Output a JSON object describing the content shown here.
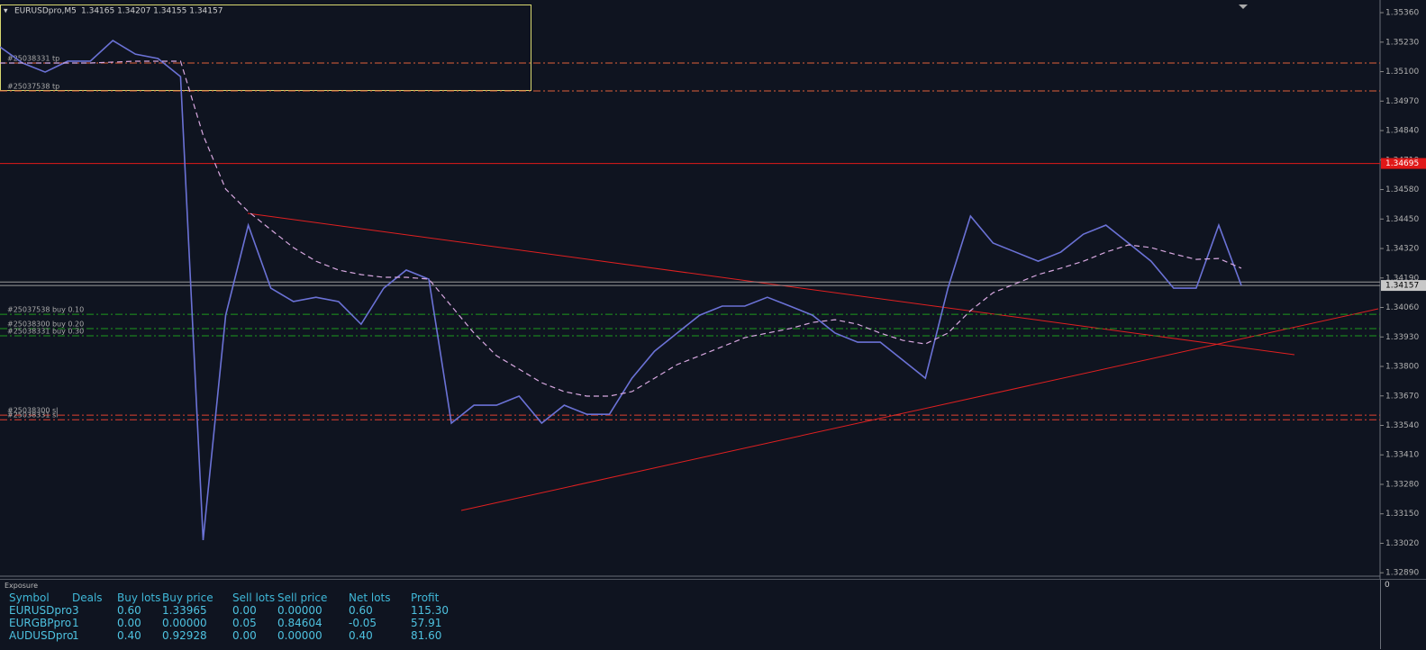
{
  "chart_data": {
    "type": "line",
    "title": "EURUSDpro,M5",
    "subtitle": "1.34165 1.34207 1.34155 1.34157",
    "categories": [
      null,
      null,
      null,
      null,
      null,
      null,
      null,
      null,
      null,
      null,
      null,
      null,
      null,
      null,
      null,
      null,
      null,
      null,
      null,
      null,
      null,
      null,
      null,
      null,
      null,
      null,
      null,
      null,
      null,
      null,
      null,
      null,
      null,
      null,
      null,
      null,
      null,
      null,
      null,
      null,
      null,
      null,
      null,
      null,
      null,
      null,
      null,
      null,
      null,
      null,
      null,
      null,
      null,
      null,
      null,
      null
    ],
    "series": [
      {
        "color": "#6b72d6",
        "values": [
          1.35209,
          1.35138,
          1.35098,
          1.35146,
          1.35146,
          1.35237,
          1.35177,
          1.35158,
          1.35078,
          1.33034,
          1.34026,
          1.34423,
          1.34145,
          1.34086,
          1.34105,
          1.34086,
          1.33986,
          1.34145,
          1.34225,
          1.34185,
          1.3355,
          1.33629,
          1.33629,
          1.33669,
          1.3355,
          1.33629,
          1.33589,
          1.33589,
          1.33748,
          1.33867,
          1.33947,
          1.34026,
          1.34066,
          1.34066,
          1.34105,
          1.34066,
          1.34026,
          1.33947,
          1.33907,
          1.33907,
          1.33828,
          1.33748,
          1.34145,
          1.34463,
          1.34344,
          1.34304,
          1.34264,
          1.34304,
          1.34383,
          1.34423,
          1.34344,
          1.34264,
          1.34145,
          1.34145,
          1.34423,
          1.34157
        ]
      },
      {
        "color": "#d8a8e0",
        "dashed": true,
        "values": [
          1.35138,
          1.35138,
          1.35138,
          1.35138,
          1.35138,
          1.35142,
          1.35146,
          1.35146,
          1.35146,
          1.3482,
          1.34582,
          1.34483,
          1.34403,
          1.34324,
          1.34264,
          1.34225,
          1.34205,
          1.34193,
          1.34193,
          1.34185,
          1.34066,
          1.33947,
          1.33847,
          1.33788,
          1.33728,
          1.33689,
          1.33669,
          1.33669,
          1.33689,
          1.33748,
          1.33808,
          1.33847,
          1.33887,
          1.33927,
          1.33947,
          1.33967,
          1.33994,
          1.34006,
          1.33986,
          1.33947,
          1.33915,
          1.33899,
          1.33947,
          1.34046,
          1.34125,
          1.34165,
          1.34205,
          1.34233,
          1.34264,
          1.34304,
          1.34336,
          1.34324,
          1.34296,
          1.34272,
          1.34276,
          1.34233
        ]
      }
    ],
    "ylim": [
      1.32875,
      1.35396
    ],
    "yticks": [
      {
        "value": 1.3536,
        "label": "1.35360"
      },
      {
        "value": 1.3523,
        "label": "1.35230"
      },
      {
        "value": 1.351,
        "label": "1.35100"
      },
      {
        "value": 1.3497,
        "label": "1.34970"
      },
      {
        "value": 1.3484,
        "label": "1.34840"
      },
      {
        "value": 1.3471,
        "label": "1.34710"
      },
      {
        "value": 1.3458,
        "label": "1.34580"
      },
      {
        "value": 1.3445,
        "label": "1.34450"
      },
      {
        "value": 1.3432,
        "label": "1.34320"
      },
      {
        "value": 1.3419,
        "label": "1.34190"
      },
      {
        "value": 1.3406,
        "label": "1.34060"
      },
      {
        "value": 1.3393,
        "label": "1.33930"
      },
      {
        "value": 1.338,
        "label": "1.33800"
      },
      {
        "value": 1.3367,
        "label": "1.33670"
      },
      {
        "value": 1.3354,
        "label": "1.33540"
      },
      {
        "value": 1.3341,
        "label": "1.33410"
      },
      {
        "value": 1.3328,
        "label": "1.33280"
      },
      {
        "value": 1.3315,
        "label": "1.33150"
      },
      {
        "value": 1.3302,
        "label": "1.33020"
      },
      {
        "value": 1.3289,
        "label": "1.32890"
      }
    ],
    "hlines": [
      {
        "value": 1.35138,
        "label": "#25038331 tp",
        "color": "#e0603a",
        "style": "dashdot"
      },
      {
        "value": 1.35015,
        "label": "#25037538 tp",
        "color": "#e0603a",
        "style": "dashdot"
      },
      {
        "value": 1.34695,
        "color": "#e01818",
        "style": "solid"
      },
      {
        "value": 1.34172,
        "color": "#9a9a9a",
        "style": "solid"
      },
      {
        "value": 1.34157,
        "color": "#9a9a9a",
        "style": "solid"
      },
      {
        "value": 1.3403,
        "label": "#25037538 buy 0.10",
        "color": "#1e9a1e",
        "style": "dashdot"
      },
      {
        "value": 1.33967,
        "label": "#25038300 buy 0.20",
        "color": "#1e9a1e",
        "style": "dashdot"
      },
      {
        "value": 1.33935,
        "label": "#25038331 buy 0.30",
        "color": "#1e9a1e",
        "style": "dashdot"
      },
      {
        "value": 1.33585,
        "label": "#25038300 sl",
        "color": "#e04030",
        "style": "dashdot"
      },
      {
        "value": 1.33565,
        "label": "#25038331 sl",
        "color": "#e04030",
        "style": "dashdot"
      }
    ],
    "price_tags": [
      {
        "value": 1.34695,
        "label": "1.34695",
        "color": "#e01818"
      },
      {
        "value": 1.34157,
        "label": "1.34157",
        "color": "#c8c8c8"
      }
    ]
  },
  "exposure": {
    "title": "Exposure",
    "axis_label": "0",
    "columns": [
      "Symbol",
      "Deals",
      "Buy lots",
      "Buy price",
      "Sell lots",
      "Sell price",
      "Net lots",
      "Profit"
    ],
    "rows": [
      [
        "EURUSDpro",
        "3",
        "0.60",
        "1.33965",
        "0.00",
        "0.00000",
        "0.60",
        "115.30"
      ],
      [
        "EURGBPpro",
        "1",
        "0.00",
        "0.00000",
        "0.05",
        "0.84604",
        "-0.05",
        "57.91"
      ],
      [
        "AUDUSDpro",
        "1",
        "0.40",
        "0.92928",
        "0.00",
        "0.00000",
        "0.40",
        "81.60"
      ]
    ]
  }
}
